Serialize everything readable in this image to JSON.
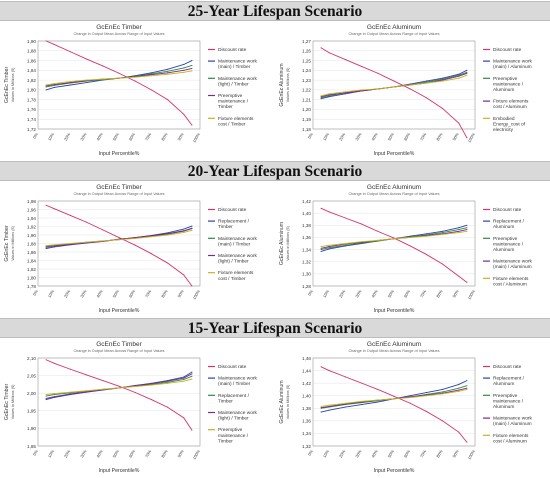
{
  "banners": [
    "25-Year Lifespan Scenario",
    "20-Year Lifespan Scenario",
    "15-Year Lifespan Scenario"
  ],
  "colors": {
    "red": "#d6336c",
    "blue": "#2b3fb8",
    "green": "#2e8b40",
    "purple": "#7a2a8a",
    "gold": "#c9b21a"
  },
  "chart_data": [
    {
      "type": "line",
      "title": "GcEnEc Timber",
      "subtitle": "Change in Output Mean Across Range of Input Values",
      "xlabel": "Input Percentile%",
      "ylabel": "GcEnEc Timber\nValues in Millions ($)",
      "x": [
        5,
        10,
        20,
        30,
        40,
        50,
        60,
        70,
        80,
        90,
        95
      ],
      "xticks": [
        "0%",
        "10%",
        "20%",
        "30%",
        "40%",
        "50%",
        "60%",
        "70%",
        "80%",
        "90%",
        "100%"
      ],
      "ylim": [
        1.72,
        1.9
      ],
      "yticks": [
        "1,72",
        "1,74",
        "1,76",
        "1,78",
        "1,80",
        "1,82",
        "1,84",
        "1,86",
        "1,88",
        "1,90"
      ],
      "series": [
        {
          "name": "Discount rate",
          "color": "#d6336c",
          "values": [
            1.9,
            1.893,
            1.878,
            1.863,
            1.849,
            1.834,
            1.818,
            1.8,
            1.78,
            1.75,
            1.728
          ]
        },
        {
          "name": "Maintenance work (main) / Timber",
          "color": "#2b3fb8",
          "values": [
            1.8,
            1.805,
            1.81,
            1.815,
            1.82,
            1.824,
            1.829,
            1.835,
            1.842,
            1.852,
            1.86
          ]
        },
        {
          "name": "Maintenance work (light) / Timber",
          "color": "#2e8b40",
          "values": [
            1.806,
            1.809,
            1.814,
            1.818,
            1.821,
            1.824,
            1.828,
            1.833,
            1.838,
            1.845,
            1.85
          ]
        },
        {
          "name": "Preemptive maintenance / Timber",
          "color": "#7a2a8a",
          "values": [
            1.808,
            1.811,
            1.815,
            1.819,
            1.822,
            1.824,
            1.827,
            1.831,
            1.835,
            1.84,
            1.844
          ]
        },
        {
          "name": "Fixture elements cost / Timber",
          "color": "#c9b21a",
          "values": [
            1.81,
            1.813,
            1.817,
            1.82,
            1.822,
            1.824,
            1.826,
            1.829,
            1.832,
            1.836,
            1.839
          ]
        }
      ]
    },
    {
      "type": "line",
      "title": "GcEnEc Aluminum",
      "subtitle": "Change in Output Mean Across Range of Input Values",
      "xlabel": "Input Percentile%",
      "ylabel": "GcEnEc Aluminum\nValues in Millions ($)",
      "x": [
        5,
        10,
        20,
        30,
        40,
        50,
        60,
        70,
        80,
        90,
        95
      ],
      "xticks": [
        "0%",
        "10%",
        "20%",
        "30%",
        "40%",
        "50%",
        "60%",
        "70%",
        "80%",
        "90%",
        "100%"
      ],
      "ylim": [
        1.18,
        1.27
      ],
      "yticks": [
        "1,18",
        "1,19",
        "1,20",
        "1,21",
        "1,22",
        "1,23",
        "1,24",
        "1,25",
        "1,26",
        "1,27"
      ],
      "series": [
        {
          "name": "Discount rate",
          "color": "#d6336c",
          "values": [
            1.263,
            1.258,
            1.251,
            1.244,
            1.237,
            1.229,
            1.221,
            1.212,
            1.201,
            1.186,
            1.171
          ]
        },
        {
          "name": "Maintenance work (main) / Aluminum",
          "color": "#2b3fb8",
          "values": [
            1.211,
            1.213,
            1.216,
            1.219,
            1.221,
            1.223,
            1.226,
            1.229,
            1.232,
            1.236,
            1.24
          ]
        },
        {
          "name": "Preemptive maintenance / Aluminum",
          "color": "#2e8b40",
          "values": [
            1.212,
            1.214,
            1.217,
            1.219,
            1.221,
            1.223,
            1.225,
            1.228,
            1.231,
            1.235,
            1.238
          ]
        },
        {
          "name": "Fixture elements cost / Aluminum",
          "color": "#7a2a8a",
          "values": [
            1.213,
            1.215,
            1.217,
            1.219,
            1.221,
            1.223,
            1.225,
            1.227,
            1.23,
            1.234,
            1.237
          ]
        },
        {
          "name": "Embodied Energy_cost of electricity",
          "color": "#c9b21a",
          "values": [
            1.214,
            1.216,
            1.218,
            1.22,
            1.221,
            1.223,
            1.225,
            1.227,
            1.229,
            1.232,
            1.235
          ]
        }
      ]
    },
    {
      "type": "line",
      "title": "GcEnEc Timber",
      "subtitle": "Change in Output Mean Across Range of Input Values",
      "xlabel": "Input Percentile%",
      "ylabel": "GcEnEc Timber\nValues in Millions ($)",
      "x": [
        5,
        10,
        20,
        30,
        40,
        50,
        60,
        70,
        80,
        90,
        95
      ],
      "xticks": [
        "0%",
        "10%",
        "20%",
        "30%",
        "40%",
        "50%",
        "60%",
        "70%",
        "80%",
        "90%",
        "100%"
      ],
      "ylim": [
        1.78,
        1.98
      ],
      "yticks": [
        "1,78",
        "1,80",
        "1,82",
        "1,84",
        "1,86",
        "1,88",
        "1,90",
        "1,92",
        "1,94",
        "1,96",
        "1,98"
      ],
      "series": [
        {
          "name": "Discount rate",
          "color": "#d6336c",
          "values": [
            1.97,
            1.962,
            1.946,
            1.93,
            1.912,
            1.894,
            1.876,
            1.856,
            1.834,
            1.806,
            1.78
          ]
        },
        {
          "name": "Replacement / Timber",
          "color": "#2b3fb8",
          "values": [
            1.868,
            1.872,
            1.877,
            1.881,
            1.885,
            1.89,
            1.894,
            1.899,
            1.905,
            1.914,
            1.921
          ]
        },
        {
          "name": "Maintenance work (main) / Timber",
          "color": "#2e8b40",
          "values": [
            1.873,
            1.876,
            1.879,
            1.883,
            1.886,
            1.889,
            1.893,
            1.897,
            1.902,
            1.909,
            1.915
          ]
        },
        {
          "name": "Maintenance work (light) / Timber",
          "color": "#7a2a8a",
          "values": [
            1.871,
            1.874,
            1.878,
            1.882,
            1.885,
            1.89,
            1.894,
            1.898,
            1.903,
            1.91,
            1.916
          ]
        },
        {
          "name": "Fixture elements cost / Timber",
          "color": "#c9b21a",
          "values": [
            1.875,
            1.877,
            1.88,
            1.883,
            1.886,
            1.889,
            1.892,
            1.896,
            1.9,
            1.906,
            1.911
          ]
        }
      ]
    },
    {
      "type": "line",
      "title": "GcEnEc Aluminum",
      "subtitle": "Change in Output Mean Across Range of Input Values",
      "xlabel": "Input Percentile%",
      "ylabel": "GcEnEc Aluminum\nValues in Millions ($)",
      "x": [
        5,
        10,
        20,
        30,
        40,
        50,
        60,
        70,
        80,
        90,
        95
      ],
      "xticks": [
        "0%",
        "10%",
        "20%",
        "30%",
        "40%",
        "50%",
        "60%",
        "70%",
        "80%",
        "90%",
        "100%"
      ],
      "ylim": [
        1.28,
        1.42
      ],
      "yticks": [
        "1,28",
        "1,30",
        "1,32",
        "1,34",
        "1,36",
        "1,38",
        "1,40",
        "1,42"
      ],
      "series": [
        {
          "name": "Discount rate",
          "color": "#d6336c",
          "values": [
            1.408,
            1.402,
            1.392,
            1.382,
            1.37,
            1.359,
            1.346,
            1.332,
            1.316,
            1.296,
            1.286
          ]
        },
        {
          "name": "Replacement / Aluminum",
          "color": "#2b3fb8",
          "values": [
            1.337,
            1.341,
            1.346,
            1.35,
            1.354,
            1.358,
            1.362,
            1.366,
            1.37,
            1.376,
            1.38
          ]
        },
        {
          "name": "Preemptive maintenance / Aluminum",
          "color": "#2e8b40",
          "values": [
            1.34,
            1.343,
            1.347,
            1.351,
            1.354,
            1.358,
            1.361,
            1.364,
            1.368,
            1.373,
            1.376
          ]
        },
        {
          "name": "Maintenance work (main) / Aluminum",
          "color": "#7a2a8a",
          "values": [
            1.342,
            1.345,
            1.349,
            1.352,
            1.355,
            1.358,
            1.36,
            1.363,
            1.366,
            1.37,
            1.373
          ]
        },
        {
          "name": "Fixture elements cost / Aluminum",
          "color": "#c9b21a",
          "values": [
            1.345,
            1.347,
            1.35,
            1.353,
            1.355,
            1.358,
            1.36,
            1.362,
            1.365,
            1.368,
            1.37
          ]
        }
      ]
    },
    {
      "type": "line",
      "title": "GcEnEc Timber",
      "subtitle": "Change in Output Mean Across Range of Input Values",
      "xlabel": "Input Percentile%",
      "ylabel": "GcEnEc Timber\nValues in Millions ($)",
      "x": [
        5,
        10,
        20,
        30,
        40,
        50,
        60,
        70,
        80,
        90,
        95
      ],
      "xticks": [
        "0%",
        "10%",
        "20%",
        "30%",
        "40%",
        "50%",
        "60%",
        "70%",
        "80%",
        "90%",
        "100%"
      ],
      "ylim": [
        1.85,
        2.1
      ],
      "yticks": [
        "1,85",
        "1,90",
        "1,95",
        "2,00",
        "2,05",
        "2,10"
      ],
      "series": [
        {
          "name": "Discount rate",
          "color": "#d6336c",
          "values": [
            2.095,
            2.085,
            2.068,
            2.052,
            2.036,
            2.02,
            2.002,
            1.982,
            1.96,
            1.93,
            1.895
          ]
        },
        {
          "name": "Maintenance work (main) / Timber",
          "color": "#2b3fb8",
          "values": [
            1.982,
            1.988,
            1.996,
            2.003,
            2.009,
            2.015,
            2.022,
            2.028,
            2.036,
            2.046,
            2.06
          ]
        },
        {
          "name": "Replacement / Timber",
          "color": "#2e8b40",
          "values": [
            1.992,
            1.996,
            2.001,
            2.006,
            2.011,
            2.015,
            2.02,
            2.025,
            2.031,
            2.039,
            2.048
          ]
        },
        {
          "name": "Maintenance work (light) / Timber",
          "color": "#7a2a8a",
          "values": [
            1.985,
            1.99,
            1.998,
            2.004,
            2.01,
            2.015,
            2.021,
            2.027,
            2.034,
            2.043,
            2.055
          ]
        },
        {
          "name": "Preemptive maintenance / Timber",
          "color": "#c9b21a",
          "values": [
            1.996,
            1.999,
            2.003,
            2.007,
            2.011,
            2.015,
            2.019,
            2.023,
            2.028,
            2.034,
            2.04
          ]
        }
      ]
    },
    {
      "type": "line",
      "title": "GcEnEc Aluminum",
      "subtitle": "Change in Output Mean Across Range of Input Values",
      "xlabel": "Input Percentile%",
      "ylabel": "GcEnEc Aluminum\nValues in Millions ($)",
      "x": [
        5,
        10,
        20,
        30,
        40,
        50,
        60,
        70,
        80,
        90,
        95
      ],
      "xticks": [
        "0%",
        "10%",
        "20%",
        "30%",
        "40%",
        "50%",
        "60%",
        "70%",
        "80%",
        "90%",
        "100%"
      ],
      "ylim": [
        1.32,
        1.46
      ],
      "yticks": [
        "1,32",
        "1,34",
        "1,36",
        "1,38",
        "1,40",
        "1,42",
        "1,44",
        "1,46"
      ],
      "series": [
        {
          "name": "Discount rate",
          "color": "#d6336c",
          "values": [
            1.446,
            1.44,
            1.43,
            1.42,
            1.41,
            1.399,
            1.388,
            1.375,
            1.36,
            1.342,
            1.326
          ]
        },
        {
          "name": "Replacement / Aluminum",
          "color": "#2b3fb8",
          "values": [
            1.374,
            1.377,
            1.382,
            1.386,
            1.39,
            1.395,
            1.4,
            1.405,
            1.41,
            1.418,
            1.424
          ]
        },
        {
          "name": "Preemptive maintenance / Aluminum",
          "color": "#2e8b40",
          "values": [
            1.38,
            1.382,
            1.386,
            1.389,
            1.392,
            1.395,
            1.398,
            1.402,
            1.406,
            1.412,
            1.416
          ]
        },
        {
          "name": "Maintenance work (main) / Aluminum",
          "color": "#7a2a8a",
          "values": [
            1.381,
            1.383,
            1.387,
            1.39,
            1.393,
            1.395,
            1.398,
            1.401,
            1.404,
            1.409,
            1.412
          ]
        },
        {
          "name": "Fixture elements cost / Aluminum",
          "color": "#c9b21a",
          "values": [
            1.383,
            1.385,
            1.388,
            1.391,
            1.393,
            1.395,
            1.397,
            1.4,
            1.403,
            1.407,
            1.41
          ]
        }
      ]
    }
  ]
}
